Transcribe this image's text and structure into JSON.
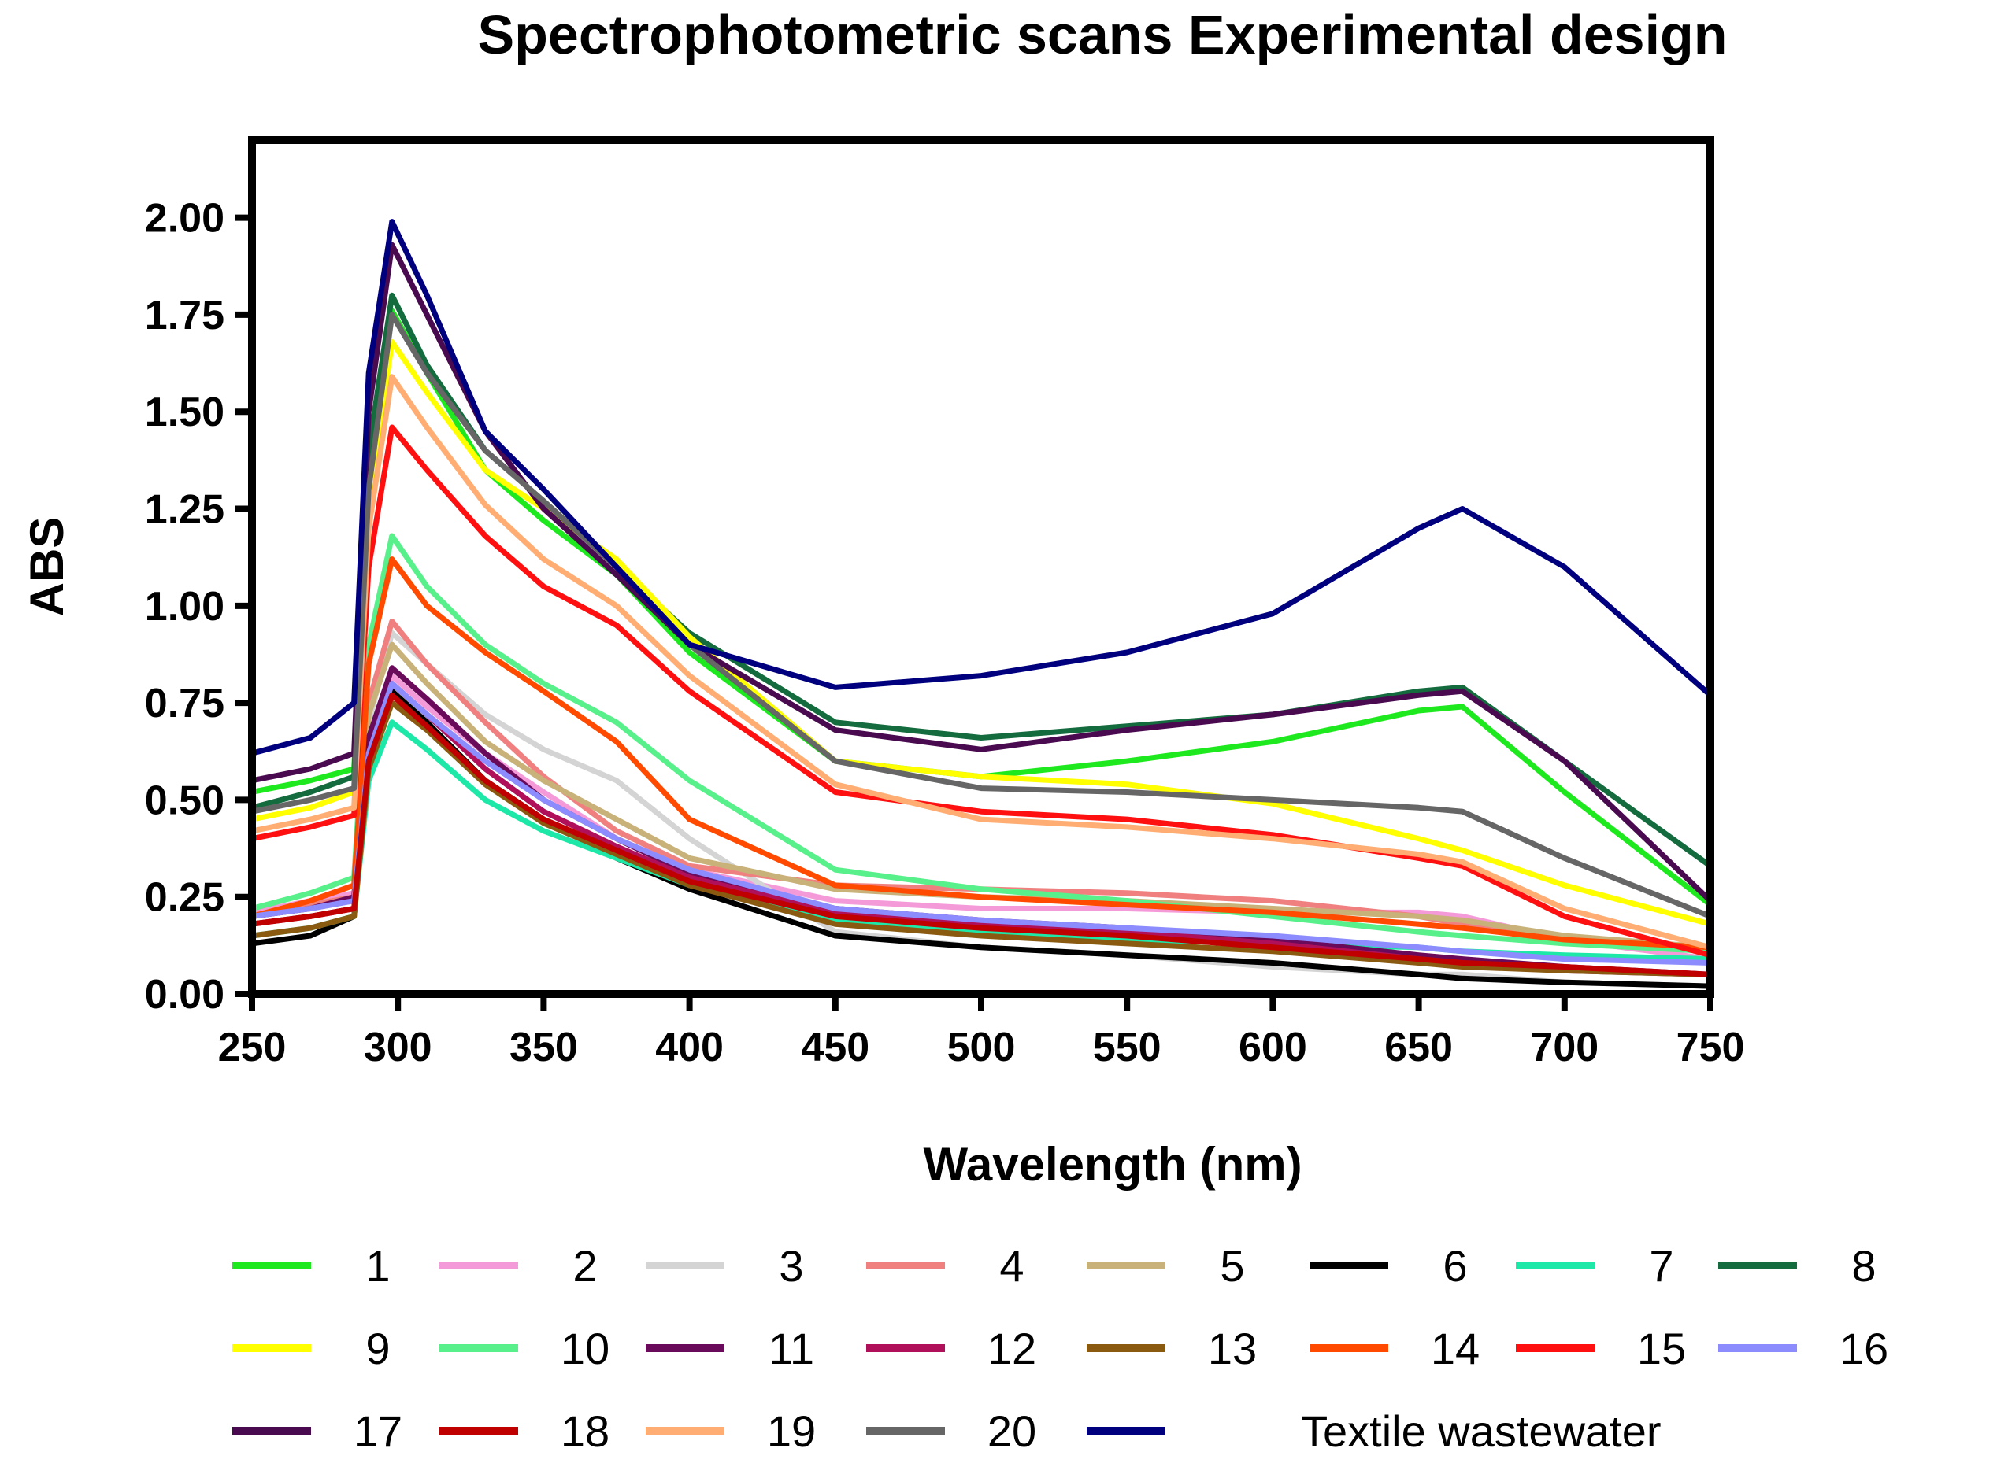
{
  "chart_data": {
    "type": "line",
    "title": "Spectrophotometric scans Experimental design",
    "xlabel": "Wavelength (nm)",
    "ylabel": "ABS",
    "xlim": [
      250,
      750
    ],
    "ylim": [
      0,
      2.2
    ],
    "x_ticks": [
      "250",
      "300",
      "350",
      "400",
      "450",
      "500",
      "550",
      "600",
      "650",
      "700",
      "750"
    ],
    "y_ticks": [
      "0.00",
      "0.25",
      "0.50",
      "0.75",
      "1.00",
      "1.25",
      "1.50",
      "1.75",
      "2.00"
    ],
    "x_tick_values": [
      250,
      300,
      350,
      400,
      450,
      500,
      550,
      600,
      650,
      700,
      750
    ],
    "y_tick_values": [
      0,
      0.25,
      0.5,
      0.75,
      1.0,
      1.25,
      1.5,
      1.75,
      2.0
    ],
    "grid": false,
    "legend_position": "bottom",
    "x": [
      250,
      270,
      285,
      290,
      298,
      310,
      330,
      350,
      375,
      400,
      450,
      500,
      550,
      600,
      650,
      665,
      700,
      750
    ],
    "series": [
      {
        "name": "1",
        "color": "#1ee81e",
        "values": [
          0.52,
          0.55,
          0.58,
          1.3,
          1.76,
          1.6,
          1.35,
          1.22,
          1.08,
          0.88,
          0.6,
          0.56,
          0.6,
          0.65,
          0.73,
          0.74,
          0.52,
          0.23
        ]
      },
      {
        "name": "2",
        "color": "#f59ad9",
        "values": [
          0.21,
          0.24,
          0.26,
          0.6,
          0.82,
          0.74,
          0.62,
          0.52,
          0.4,
          0.32,
          0.24,
          0.22,
          0.22,
          0.21,
          0.21,
          0.2,
          0.14,
          0.09
        ]
      },
      {
        "name": "3",
        "color": "#d4d4d4",
        "values": [
          0.18,
          0.2,
          0.22,
          0.7,
          0.93,
          0.85,
          0.72,
          0.63,
          0.55,
          0.4,
          0.16,
          0.12,
          0.1,
          0.07,
          0.05,
          0.05,
          0.03,
          0.02
        ]
      },
      {
        "name": "4",
        "color": "#f08080",
        "values": [
          0.2,
          0.23,
          0.25,
          0.75,
          0.96,
          0.85,
          0.7,
          0.56,
          0.42,
          0.33,
          0.28,
          0.27,
          0.26,
          0.24,
          0.2,
          0.18,
          0.14,
          0.11
        ]
      },
      {
        "name": "5",
        "color": "#c8b27a",
        "values": [
          0.2,
          0.22,
          0.24,
          0.72,
          0.9,
          0.8,
          0.65,
          0.55,
          0.45,
          0.35,
          0.27,
          0.25,
          0.24,
          0.22,
          0.2,
          0.19,
          0.15,
          0.12
        ]
      },
      {
        "name": "6",
        "color": "#000000",
        "values": [
          0.13,
          0.15,
          0.2,
          0.6,
          0.78,
          0.7,
          0.55,
          0.45,
          0.35,
          0.27,
          0.15,
          0.12,
          0.1,
          0.08,
          0.05,
          0.04,
          0.03,
          0.02
        ]
      },
      {
        "name": "7",
        "color": "#1de8a8",
        "values": [
          0.15,
          0.17,
          0.2,
          0.55,
          0.7,
          0.63,
          0.5,
          0.42,
          0.35,
          0.28,
          0.19,
          0.16,
          0.14,
          0.13,
          0.12,
          0.11,
          0.1,
          0.09
        ]
      },
      {
        "name": "8",
        "color": "#146b3e",
        "values": [
          0.48,
          0.52,
          0.56,
          1.4,
          1.8,
          1.62,
          1.4,
          1.27,
          1.1,
          0.93,
          0.7,
          0.66,
          0.69,
          0.72,
          0.78,
          0.79,
          0.6,
          0.33
        ]
      },
      {
        "name": "9",
        "color": "#ffff00",
        "values": [
          0.45,
          0.48,
          0.52,
          1.25,
          1.68,
          1.55,
          1.35,
          1.25,
          1.12,
          0.92,
          0.6,
          0.56,
          0.54,
          0.49,
          0.4,
          0.37,
          0.28,
          0.18
        ]
      },
      {
        "name": "10",
        "color": "#58f08a",
        "values": [
          0.22,
          0.26,
          0.3,
          0.9,
          1.18,
          1.05,
          0.9,
          0.8,
          0.7,
          0.55,
          0.32,
          0.27,
          0.24,
          0.2,
          0.16,
          0.15,
          0.13,
          0.11
        ]
      },
      {
        "name": "11",
        "color": "#6a0a5a",
        "values": [
          0.2,
          0.22,
          0.25,
          0.66,
          0.84,
          0.76,
          0.62,
          0.5,
          0.4,
          0.31,
          0.22,
          0.19,
          0.17,
          0.14,
          0.1,
          0.09,
          0.07,
          0.05
        ]
      },
      {
        "name": "12",
        "color": "#b0105a",
        "values": [
          0.18,
          0.2,
          0.22,
          0.62,
          0.8,
          0.72,
          0.58,
          0.47,
          0.38,
          0.3,
          0.21,
          0.18,
          0.16,
          0.13,
          0.09,
          0.08,
          0.06,
          0.05
        ]
      },
      {
        "name": "13",
        "color": "#8a5a10",
        "values": [
          0.15,
          0.17,
          0.2,
          0.58,
          0.75,
          0.68,
          0.54,
          0.44,
          0.36,
          0.28,
          0.18,
          0.15,
          0.13,
          0.11,
          0.08,
          0.07,
          0.06,
          0.05
        ]
      },
      {
        "name": "14",
        "color": "#ff4a00",
        "values": [
          0.2,
          0.24,
          0.28,
          0.85,
          1.12,
          1.0,
          0.88,
          0.78,
          0.65,
          0.45,
          0.28,
          0.25,
          0.23,
          0.21,
          0.18,
          0.17,
          0.14,
          0.12
        ]
      },
      {
        "name": "15",
        "color": "#ff1010",
        "values": [
          0.4,
          0.43,
          0.46,
          1.1,
          1.46,
          1.35,
          1.18,
          1.05,
          0.95,
          0.78,
          0.52,
          0.47,
          0.45,
          0.41,
          0.35,
          0.33,
          0.2,
          0.1
        ]
      },
      {
        "name": "16",
        "color": "#8c8cff",
        "values": [
          0.2,
          0.22,
          0.24,
          0.62,
          0.8,
          0.72,
          0.6,
          0.5,
          0.4,
          0.32,
          0.22,
          0.19,
          0.17,
          0.15,
          0.12,
          0.11,
          0.09,
          0.08
        ]
      },
      {
        "name": "17",
        "color": "#4a0a50",
        "values": [
          0.55,
          0.58,
          0.62,
          1.5,
          1.93,
          1.75,
          1.45,
          1.25,
          1.08,
          0.9,
          0.68,
          0.63,
          0.68,
          0.72,
          0.77,
          0.78,
          0.6,
          0.24
        ]
      },
      {
        "name": "18",
        "color": "#c00000",
        "values": [
          0.18,
          0.2,
          0.22,
          0.6,
          0.77,
          0.69,
          0.55,
          0.45,
          0.37,
          0.29,
          0.2,
          0.17,
          0.15,
          0.12,
          0.09,
          0.08,
          0.07,
          0.05
        ]
      },
      {
        "name": "19",
        "color": "#ffad73",
        "values": [
          0.42,
          0.45,
          0.48,
          1.2,
          1.59,
          1.46,
          1.26,
          1.12,
          1.0,
          0.82,
          0.54,
          0.45,
          0.43,
          0.4,
          0.36,
          0.34,
          0.22,
          0.12
        ]
      },
      {
        "name": "20",
        "color": "#666666",
        "values": [
          0.47,
          0.5,
          0.53,
          1.3,
          1.75,
          1.6,
          1.4,
          1.27,
          1.1,
          0.9,
          0.6,
          0.53,
          0.52,
          0.5,
          0.48,
          0.47,
          0.35,
          0.2
        ]
      },
      {
        "name": "Textile wastewater",
        "color": "#00007f",
        "values": [
          0.62,
          0.66,
          0.75,
          1.6,
          1.99,
          1.8,
          1.45,
          1.3,
          1.1,
          0.9,
          0.79,
          0.82,
          0.88,
          0.98,
          1.2,
          1.25,
          1.1,
          0.77
        ]
      }
    ]
  }
}
